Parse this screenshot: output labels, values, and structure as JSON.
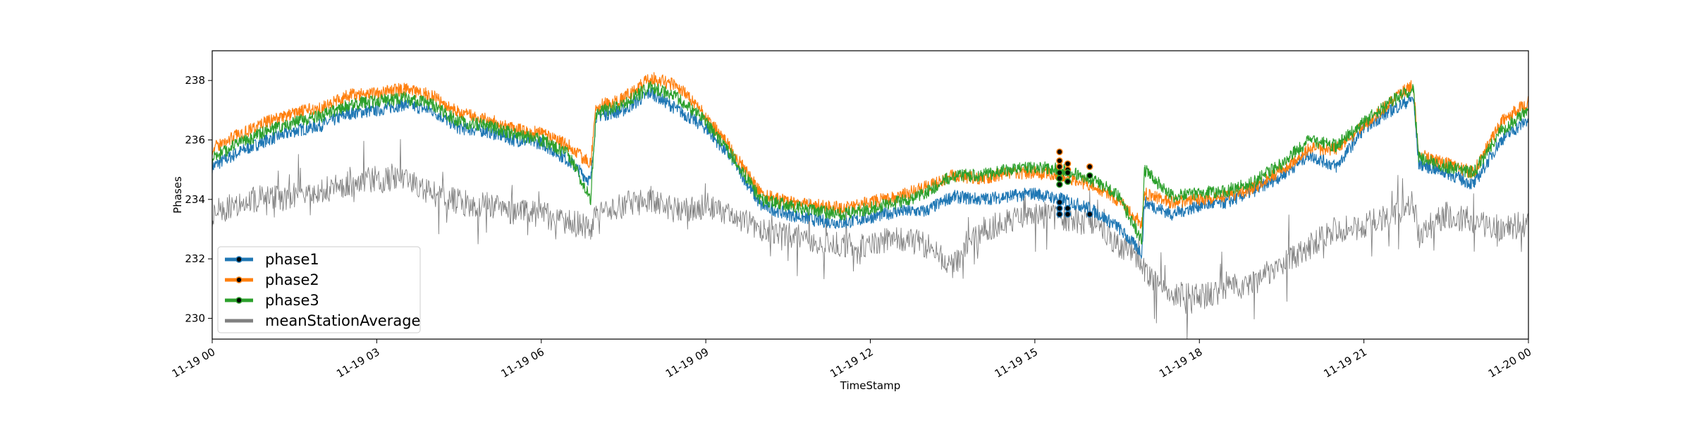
{
  "chart_data": {
    "type": "line",
    "title": "",
    "xlabel": "TimeStamp",
    "ylabel": "Phases",
    "xlim": [
      "2019-11-19 00:00",
      "2019-11-20 00:00"
    ],
    "ylim": [
      229.3,
      239.0
    ],
    "xticks": [
      "11-19 00",
      "11-19 03",
      "11-19 06",
      "11-19 09",
      "11-19 12",
      "11-19 15",
      "11-19 18",
      "11-19 21",
      "11-20 00"
    ],
    "xtick_hours": [
      0,
      3,
      6,
      9,
      12,
      15,
      18,
      21,
      24
    ],
    "yticks": [
      230,
      232,
      234,
      236,
      238
    ],
    "ytick_labels": [
      "230",
      "232",
      "234",
      "236",
      "238"
    ],
    "grid": false,
    "legend_placement": "lower-left",
    "series": [
      {
        "name": "phase1",
        "color": "#1f77b4",
        "x_hours": [
          0,
          0.5,
          1,
          1.5,
          2,
          2.5,
          3,
          3.5,
          4,
          4.5,
          5,
          5.5,
          6,
          6.5,
          6.9,
          7.0,
          7.5,
          8,
          8.5,
          9,
          9.5,
          10,
          10.5,
          11,
          11.5,
          12,
          12.5,
          13,
          13.5,
          14,
          14.5,
          15,
          15.5,
          16,
          16.5,
          16.95,
          17.0,
          17.5,
          18,
          18.5,
          19,
          19.5,
          20,
          20.5,
          21,
          21.5,
          21.9,
          22.0,
          22.5,
          23,
          23.5,
          24
        ],
        "values": [
          235.1,
          235.6,
          236.0,
          236.3,
          236.5,
          236.9,
          237.0,
          237.2,
          237.0,
          236.4,
          236.3,
          236.0,
          235.9,
          235.3,
          234.6,
          236.8,
          237.0,
          237.6,
          237.0,
          236.4,
          235.3,
          233.8,
          233.5,
          233.3,
          233.2,
          233.4,
          233.6,
          233.6,
          234.1,
          234.0,
          234.1,
          234.2,
          234.0,
          233.7,
          233.1,
          232.2,
          233.9,
          233.5,
          233.8,
          233.9,
          234.3,
          234.8,
          235.5,
          235.1,
          236.4,
          237.0,
          237.4,
          235.2,
          234.9,
          234.5,
          236.0,
          236.7
        ]
      },
      {
        "name": "phase2",
        "color": "#ff7f0e",
        "x_hours": [
          0,
          0.5,
          1,
          1.5,
          2,
          2.5,
          3,
          3.5,
          4,
          4.5,
          5,
          5.5,
          6,
          6.5,
          6.9,
          7.0,
          7.5,
          8,
          8.5,
          9,
          9.5,
          10,
          10.5,
          11,
          11.5,
          12,
          12.5,
          13,
          13.5,
          14,
          14.5,
          15,
          15.5,
          16,
          16.5,
          16.95,
          17.0,
          17.5,
          18,
          18.5,
          19,
          19.5,
          20,
          20.5,
          21,
          21.5,
          21.9,
          22.0,
          22.5,
          23,
          23.5,
          24
        ],
        "values": [
          235.7,
          236.2,
          236.6,
          236.9,
          237.1,
          237.5,
          237.6,
          237.7,
          237.5,
          236.9,
          236.7,
          236.4,
          236.2,
          235.8,
          235.2,
          237.1,
          237.4,
          238.1,
          237.8,
          236.8,
          235.6,
          234.2,
          233.9,
          233.8,
          233.7,
          233.9,
          234.1,
          234.4,
          234.8,
          234.7,
          234.9,
          234.9,
          234.8,
          234.5,
          234.0,
          233.2,
          234.2,
          233.9,
          234.0,
          234.1,
          234.4,
          235.0,
          235.7,
          235.7,
          236.5,
          237.3,
          237.9,
          235.5,
          235.2,
          234.9,
          236.6,
          237.3
        ]
      },
      {
        "name": "phase3",
        "color": "#2ca02c",
        "x_hours": [
          0,
          0.5,
          1,
          1.5,
          2,
          2.5,
          3,
          3.5,
          4,
          4.5,
          5,
          5.5,
          6,
          6.5,
          6.9,
          7.0,
          7.5,
          8,
          8.5,
          9,
          9.5,
          10,
          10.5,
          11,
          11.5,
          12,
          12.5,
          13,
          13.5,
          14,
          14.5,
          15,
          15.5,
          16,
          16.5,
          16.95,
          17.0,
          17.5,
          18,
          18.5,
          19,
          19.5,
          20,
          20.5,
          21,
          21.5,
          21.9,
          22.0,
          22.5,
          23,
          23.5,
          24
        ],
        "values": [
          235.4,
          235.9,
          236.3,
          236.6,
          236.8,
          237.2,
          237.3,
          237.4,
          237.2,
          236.6,
          236.5,
          236.2,
          236.0,
          235.5,
          234.0,
          236.9,
          237.2,
          237.8,
          237.4,
          236.6,
          235.4,
          234.0,
          233.8,
          233.6,
          233.5,
          233.7,
          233.9,
          234.2,
          234.8,
          234.8,
          235.0,
          235.1,
          235.0,
          234.7,
          234.2,
          232.6,
          235.0,
          234.1,
          234.2,
          234.3,
          234.6,
          235.2,
          236.0,
          235.8,
          236.6,
          237.3,
          237.7,
          235.4,
          235.1,
          234.9,
          236.3,
          237.0
        ]
      },
      {
        "name": "meanStationAverage",
        "color": "#808080",
        "x_hours": [
          0,
          0.5,
          1,
          1.5,
          2,
          2.5,
          3,
          3.5,
          4,
          4.5,
          5,
          5.5,
          6,
          6.5,
          6.9,
          7.0,
          7.5,
          8,
          8.5,
          9,
          9.5,
          10,
          10.5,
          11,
          11.5,
          12,
          12.5,
          13,
          13.5,
          14,
          14.5,
          15,
          15.5,
          16,
          16.5,
          16.95,
          17.0,
          17.5,
          18,
          18.5,
          19,
          19.5,
          20,
          20.5,
          21,
          21.5,
          21.9,
          22.0,
          22.5,
          23,
          23.5,
          24
        ],
        "values": [
          233.5,
          233.9,
          234.1,
          234.1,
          234.3,
          234.5,
          234.7,
          234.7,
          234.2,
          233.9,
          233.8,
          233.6,
          233.5,
          233.2,
          233.1,
          233.4,
          233.8,
          234.0,
          233.6,
          233.8,
          233.4,
          233.0,
          232.8,
          232.6,
          232.5,
          232.5,
          232.7,
          232.5,
          231.8,
          232.9,
          233.3,
          233.5,
          233.4,
          233.2,
          232.5,
          232.0,
          231.5,
          230.8,
          230.7,
          231.0,
          231.2,
          231.8,
          232.4,
          233.0,
          233.1,
          233.5,
          233.9,
          232.8,
          233.5,
          233.3,
          233.0,
          233.2
        ]
      }
    ],
    "marker_points": [
      {
        "series": "phase2",
        "x_hours": 15.45,
        "values": [
          235.6,
          235.3,
          235.1
        ]
      },
      {
        "series": "phase2",
        "x_hours": 15.6,
        "values": [
          235.2,
          235.0
        ]
      },
      {
        "series": "phase2",
        "x_hours": 16.0,
        "values": [
          235.1
        ]
      },
      {
        "series": "phase3",
        "x_hours": 15.45,
        "values": [
          234.9,
          234.7,
          234.5
        ]
      },
      {
        "series": "phase3",
        "x_hours": 15.6,
        "values": [
          234.9,
          234.6
        ]
      },
      {
        "series": "phase3",
        "x_hours": 16.0,
        "values": [
          234.8
        ]
      },
      {
        "series": "phase1",
        "x_hours": 15.45,
        "values": [
          233.9,
          233.7,
          233.5
        ]
      },
      {
        "series": "phase1",
        "x_hours": 15.6,
        "values": [
          233.7,
          233.5
        ]
      },
      {
        "series": "phase1",
        "x_hours": 16.0,
        "values": [
          233.5
        ]
      }
    ],
    "legend": [
      {
        "name": "phase1",
        "color": "#1f77b4",
        "marker": true
      },
      {
        "name": "phase2",
        "color": "#ff7f0e",
        "marker": true
      },
      {
        "name": "phase3",
        "color": "#2ca02c",
        "marker": true
      },
      {
        "name": "meanStationAverage",
        "color": "#808080",
        "marker": false
      }
    ]
  }
}
